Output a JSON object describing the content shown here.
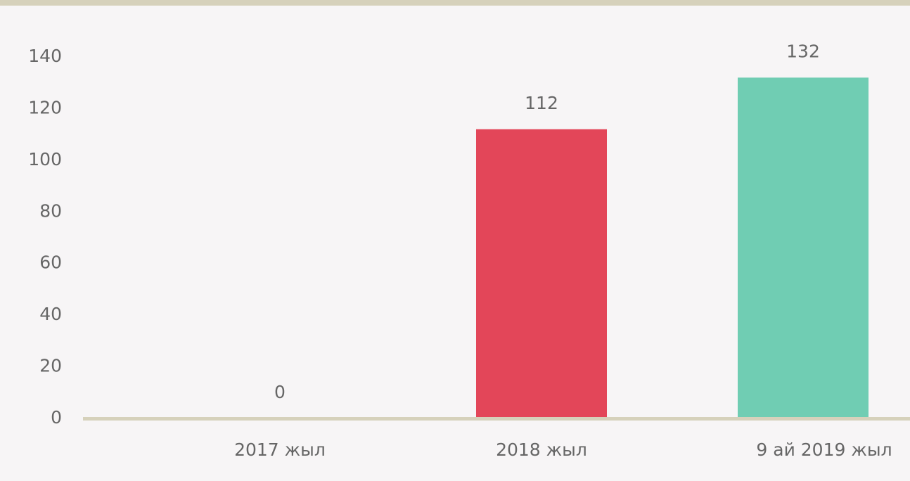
{
  "chart_data": {
    "type": "bar",
    "categories": [
      "2017 жыл",
      "2018 жыл",
      "9 ай 2019 жыл"
    ],
    "values": [
      0,
      112,
      132
    ],
    "colors": [
      "#e34659",
      "#e34659",
      "#70cdb3"
    ],
    "ylim": [
      0,
      140
    ],
    "yticks": [
      0,
      20,
      40,
      60,
      80,
      100,
      120,
      140
    ],
    "grid": false
  }
}
